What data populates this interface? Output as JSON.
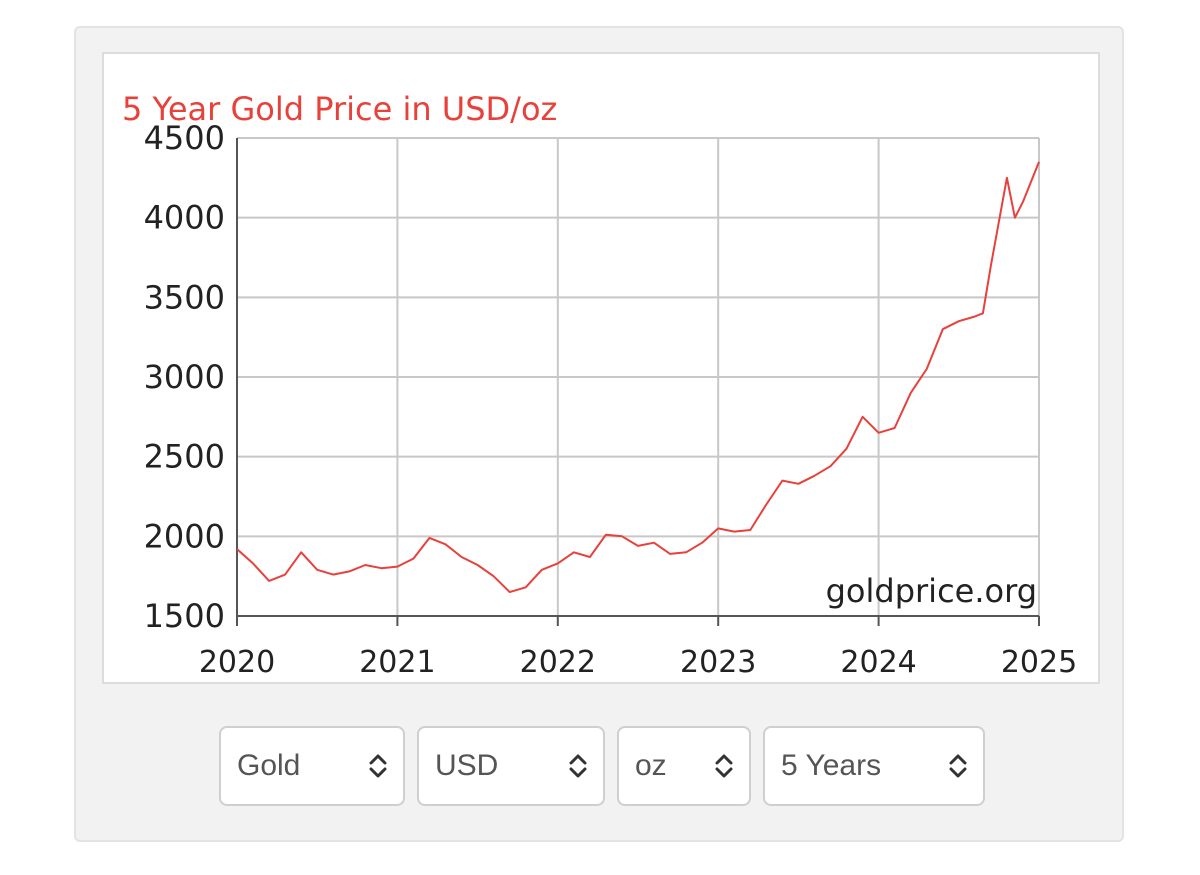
{
  "chart_data": {
    "type": "line",
    "title": "5 Year Gold Price in USD/oz",
    "watermark": "goldprice.org",
    "xlabel": "",
    "ylabel": "",
    "xlim": [
      2020,
      2025
    ],
    "ylim": [
      1500,
      4500
    ],
    "x_ticks": [
      "2020",
      "2021",
      "2022",
      "2023",
      "2024",
      "2025"
    ],
    "y_ticks": [
      "4500",
      "4000",
      "3500",
      "3000",
      "2500",
      "2000",
      "1500"
    ],
    "grid": true,
    "line_color": "#e8413b",
    "series": [
      {
        "x": [
          2020.0,
          2020.1,
          2020.2,
          2020.3,
          2020.4,
          2020.5,
          2020.6,
          2020.7,
          2020.8,
          2020.9,
          2021.0,
          2021.1,
          2021.2,
          2021.3,
          2021.4,
          2021.5,
          2021.6,
          2021.7,
          2021.8,
          2021.9,
          2022.0,
          2022.1,
          2022.2,
          2022.3,
          2022.4,
          2022.5,
          2022.6,
          2022.7,
          2022.8,
          2022.9,
          2023.0,
          2023.1,
          2023.2,
          2023.3,
          2023.4,
          2023.5,
          2023.6,
          2023.7,
          2023.8,
          2023.9,
          2024.0,
          2024.1,
          2024.2,
          2024.3,
          2024.4,
          2024.5,
          2024.6,
          2024.65,
          2024.7,
          2024.8,
          2024.85,
          2024.9,
          2025.0
        ],
        "values": [
          1920,
          1830,
          1720,
          1760,
          1900,
          1790,
          1760,
          1780,
          1820,
          1800,
          1810,
          1860,
          1990,
          1950,
          1870,
          1820,
          1750,
          1650,
          1680,
          1790,
          1830,
          1900,
          1870,
          2010,
          2000,
          1940,
          1960,
          1890,
          1900,
          1960,
          2050,
          2030,
          2040,
          2200,
          2350,
          2330,
          2380,
          2440,
          2550,
          2750,
          2650,
          2680,
          2900,
          3050,
          3300,
          3350,
          3380,
          3400,
          3700,
          4250,
          4000,
          4100,
          4350
        ]
      }
    ]
  },
  "controls": {
    "metal": "Gold",
    "currency": "USD",
    "unit": "oz",
    "period": "5 Years"
  }
}
